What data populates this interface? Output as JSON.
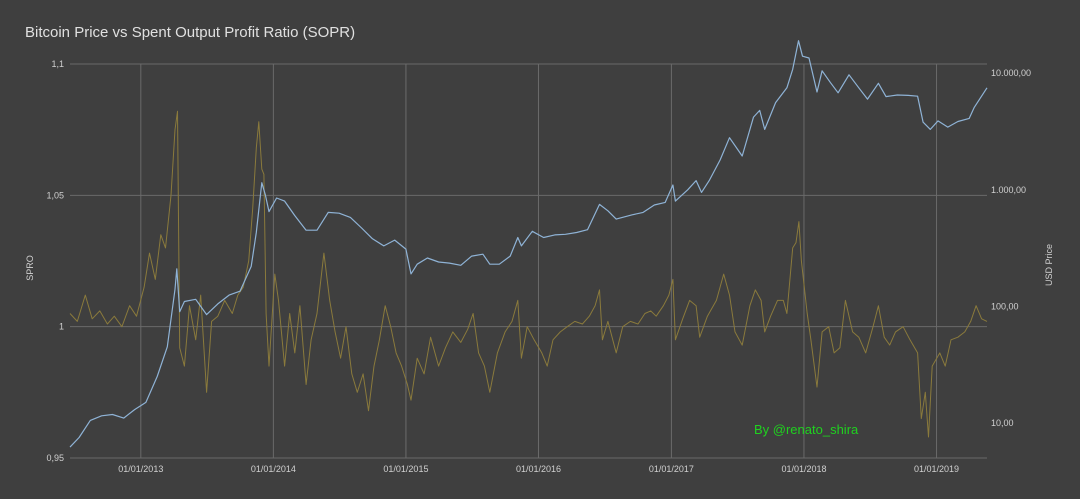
{
  "chart_data": {
    "type": "line",
    "title": "Bitcoin Price vs Spent Output Profit Ratio (SOPR)",
    "ylabel": "SPRO",
    "y2label": "USD Price",
    "ylim": [
      0.95,
      1.1
    ],
    "y_ticks": [
      {
        "value": 0.95,
        "label": "0,95"
      },
      {
        "value": 1.0,
        "label": "1"
      },
      {
        "value": 1.05,
        "label": "1,05"
      },
      {
        "value": 1.1,
        "label": "1,1"
      }
    ],
    "y2_scale": "log",
    "y2lim": [
      5,
      12000
    ],
    "y2_ticks": [
      {
        "value": 10,
        "label": "10,00"
      },
      {
        "value": 100,
        "label": "100,00"
      },
      {
        "value": 1000,
        "label": "1.000,00"
      },
      {
        "value": 10000,
        "label": "10.000,00"
      }
    ],
    "xlim": [
      "2012-06-20",
      "2019-05-20"
    ],
    "x_ticks": [
      {
        "value": "2013-01-01",
        "label": "01/01/2013"
      },
      {
        "value": "2014-01-01",
        "label": "01/01/2014"
      },
      {
        "value": "2015-01-01",
        "label": "01/01/2015"
      },
      {
        "value": "2016-01-01",
        "label": "01/01/2016"
      },
      {
        "value": "2017-01-01",
        "label": "01/01/2017"
      },
      {
        "value": "2018-01-01",
        "label": "01/01/2018"
      },
      {
        "value": "2019-01-01",
        "label": "01/01/2019"
      }
    ],
    "grid": true,
    "annotation": "By @renato_shira",
    "colors": {
      "background": "#3f3f3f",
      "grid": "#6a6a6a",
      "sopr": "#8a7a3c",
      "price": "#8fb3d6",
      "annotation": "#1fd11f",
      "text": "#d0d0d0"
    },
    "series": [
      {
        "name": "SOPR",
        "axis": "left",
        "points": [
          [
            "2012-06-20",
            1.005
          ],
          [
            "2012-07-10",
            1.002
          ],
          [
            "2012-08-01",
            1.012
          ],
          [
            "2012-08-20",
            1.003
          ],
          [
            "2012-09-10",
            1.006
          ],
          [
            "2012-10-01",
            1.001
          ],
          [
            "2012-10-20",
            1.004
          ],
          [
            "2012-11-10",
            1.0
          ],
          [
            "2012-12-01",
            1.008
          ],
          [
            "2012-12-20",
            1.004
          ],
          [
            "2013-01-10",
            1.015
          ],
          [
            "2013-01-25",
            1.028
          ],
          [
            "2013-02-10",
            1.018
          ],
          [
            "2013-02-25",
            1.035
          ],
          [
            "2013-03-10",
            1.03
          ],
          [
            "2013-03-25",
            1.05
          ],
          [
            "2013-04-05",
            1.075
          ],
          [
            "2013-04-12",
            1.082
          ],
          [
            "2013-04-18",
            0.992
          ],
          [
            "2013-05-01",
            0.985
          ],
          [
            "2013-05-15",
            1.008
          ],
          [
            "2013-06-01",
            0.995
          ],
          [
            "2013-06-15",
            1.012
          ],
          [
            "2013-07-01",
            0.975
          ],
          [
            "2013-07-15",
            1.002
          ],
          [
            "2013-08-01",
            1.004
          ],
          [
            "2013-08-20",
            1.01
          ],
          [
            "2013-09-10",
            1.005
          ],
          [
            "2013-09-25",
            1.012
          ],
          [
            "2013-10-10",
            1.015
          ],
          [
            "2013-10-25",
            1.025
          ],
          [
            "2013-11-05",
            1.045
          ],
          [
            "2013-11-15",
            1.068
          ],
          [
            "2013-11-22",
            1.078
          ],
          [
            "2013-11-30",
            1.06
          ],
          [
            "2013-12-06",
            1.058
          ],
          [
            "2013-12-12",
            1.005
          ],
          [
            "2013-12-20",
            0.985
          ],
          [
            "2014-01-05",
            1.02
          ],
          [
            "2014-01-15",
            1.01
          ],
          [
            "2014-02-01",
            0.985
          ],
          [
            "2014-02-15",
            1.005
          ],
          [
            "2014-03-01",
            0.99
          ],
          [
            "2014-03-15",
            1.008
          ],
          [
            "2014-04-01",
            0.978
          ],
          [
            "2014-04-15",
            0.995
          ],
          [
            "2014-05-01",
            1.005
          ],
          [
            "2014-05-20",
            1.028
          ],
          [
            "2014-06-05",
            1.01
          ],
          [
            "2014-06-20",
            0.998
          ],
          [
            "2014-07-05",
            0.988
          ],
          [
            "2014-07-20",
            1.0
          ],
          [
            "2014-08-05",
            0.982
          ],
          [
            "2014-08-20",
            0.975
          ],
          [
            "2014-09-05",
            0.982
          ],
          [
            "2014-09-20",
            0.968
          ],
          [
            "2014-10-05",
            0.985
          ],
          [
            "2014-10-20",
            0.995
          ],
          [
            "2014-11-05",
            1.008
          ],
          [
            "2014-11-20",
            1.0
          ],
          [
            "2014-12-05",
            0.99
          ],
          [
            "2014-12-20",
            0.985
          ],
          [
            "2015-01-05",
            0.978
          ],
          [
            "2015-01-15",
            0.972
          ],
          [
            "2015-02-01",
            0.988
          ],
          [
            "2015-02-20",
            0.982
          ],
          [
            "2015-03-10",
            0.996
          ],
          [
            "2015-04-01",
            0.985
          ],
          [
            "2015-04-20",
            0.992
          ],
          [
            "2015-05-10",
            0.998
          ],
          [
            "2015-06-01",
            0.994
          ],
          [
            "2015-06-20",
            0.999
          ],
          [
            "2015-07-05",
            1.005
          ],
          [
            "2015-07-20",
            0.99
          ],
          [
            "2015-08-05",
            0.985
          ],
          [
            "2015-08-20",
            0.975
          ],
          [
            "2015-09-10",
            0.99
          ],
          [
            "2015-10-01",
            0.998
          ],
          [
            "2015-10-20",
            1.002
          ],
          [
            "2015-11-05",
            1.01
          ],
          [
            "2015-11-15",
            0.988
          ],
          [
            "2015-12-01",
            1.0
          ],
          [
            "2015-12-20",
            0.995
          ],
          [
            "2016-01-10",
            0.99
          ],
          [
            "2016-01-25",
            0.985
          ],
          [
            "2016-02-10",
            0.995
          ],
          [
            "2016-03-01",
            0.998
          ],
          [
            "2016-03-20",
            1.0
          ],
          [
            "2016-04-10",
            1.002
          ],
          [
            "2016-05-01",
            1.001
          ],
          [
            "2016-05-20",
            1.004
          ],
          [
            "2016-06-05",
            1.008
          ],
          [
            "2016-06-17",
            1.014
          ],
          [
            "2016-06-25",
            0.995
          ],
          [
            "2016-07-10",
            1.002
          ],
          [
            "2016-08-02",
            0.99
          ],
          [
            "2016-08-20",
            1.0
          ],
          [
            "2016-09-10",
            1.002
          ],
          [
            "2016-10-01",
            1.001
          ],
          [
            "2016-10-20",
            1.005
          ],
          [
            "2016-11-05",
            1.006
          ],
          [
            "2016-11-20",
            1.004
          ],
          [
            "2016-12-10",
            1.008
          ],
          [
            "2016-12-25",
            1.012
          ],
          [
            "2017-01-05",
            1.018
          ],
          [
            "2017-01-12",
            0.995
          ],
          [
            "2017-02-01",
            1.003
          ],
          [
            "2017-02-20",
            1.01
          ],
          [
            "2017-03-10",
            1.008
          ],
          [
            "2017-03-20",
            0.996
          ],
          [
            "2017-04-10",
            1.004
          ],
          [
            "2017-05-05",
            1.01
          ],
          [
            "2017-05-25",
            1.02
          ],
          [
            "2017-06-10",
            1.012
          ],
          [
            "2017-06-25",
            0.998
          ],
          [
            "2017-07-15",
            0.993
          ],
          [
            "2017-08-05",
            1.008
          ],
          [
            "2017-08-20",
            1.014
          ],
          [
            "2017-09-05",
            1.01
          ],
          [
            "2017-09-15",
            0.998
          ],
          [
            "2017-10-01",
            1.004
          ],
          [
            "2017-10-20",
            1.01
          ],
          [
            "2017-11-05",
            1.01
          ],
          [
            "2017-11-15",
            1.005
          ],
          [
            "2017-12-01",
            1.03
          ],
          [
            "2017-12-10",
            1.032
          ],
          [
            "2017-12-18",
            1.04
          ],
          [
            "2017-12-25",
            1.025
          ],
          [
            "2018-01-10",
            1.005
          ],
          [
            "2018-01-20",
            0.995
          ],
          [
            "2018-02-06",
            0.977
          ],
          [
            "2018-02-20",
            0.998
          ],
          [
            "2018-03-10",
            1.0
          ],
          [
            "2018-03-25",
            0.99
          ],
          [
            "2018-04-10",
            0.992
          ],
          [
            "2018-04-25",
            1.01
          ],
          [
            "2018-05-15",
            0.998
          ],
          [
            "2018-06-01",
            0.996
          ],
          [
            "2018-06-20",
            0.99
          ],
          [
            "2018-07-10",
            1.0
          ],
          [
            "2018-07-25",
            1.008
          ],
          [
            "2018-08-10",
            0.996
          ],
          [
            "2018-08-25",
            0.993
          ],
          [
            "2018-09-10",
            0.998
          ],
          [
            "2018-10-01",
            1.0
          ],
          [
            "2018-10-20",
            0.995
          ],
          [
            "2018-11-10",
            0.99
          ],
          [
            "2018-11-20",
            0.965
          ],
          [
            "2018-12-01",
            0.975
          ],
          [
            "2018-12-10",
            0.958
          ],
          [
            "2018-12-20",
            0.985
          ],
          [
            "2019-01-10",
            0.99
          ],
          [
            "2019-01-25",
            0.985
          ],
          [
            "2019-02-10",
            0.995
          ],
          [
            "2019-03-01",
            0.996
          ],
          [
            "2019-03-20",
            0.998
          ],
          [
            "2019-04-05",
            1.002
          ],
          [
            "2019-04-20",
            1.008
          ],
          [
            "2019-05-05",
            1.003
          ],
          [
            "2019-05-20",
            1.002
          ]
        ]
      },
      {
        "name": "USD Price",
        "axis": "right",
        "points": [
          [
            "2012-06-20",
            6.2
          ],
          [
            "2012-07-15",
            7.5
          ],
          [
            "2012-08-15",
            10.5
          ],
          [
            "2012-09-15",
            11.5
          ],
          [
            "2012-10-15",
            11.8
          ],
          [
            "2012-11-15",
            11.0
          ],
          [
            "2012-12-15",
            13.0
          ],
          [
            "2013-01-15",
            15.0
          ],
          [
            "2013-02-15",
            25.0
          ],
          [
            "2013-03-15",
            45.0
          ],
          [
            "2013-04-05",
            140.0
          ],
          [
            "2013-04-10",
            210.0
          ],
          [
            "2013-04-18",
            90.0
          ],
          [
            "2013-05-01",
            110.0
          ],
          [
            "2013-06-01",
            115.0
          ],
          [
            "2013-07-01",
            85.0
          ],
          [
            "2013-08-01",
            105.0
          ],
          [
            "2013-09-01",
            125.0
          ],
          [
            "2013-10-01",
            135.0
          ],
          [
            "2013-11-01",
            220.0
          ],
          [
            "2013-11-15",
            430.0
          ],
          [
            "2013-11-30",
            1150.0
          ],
          [
            "2013-12-10",
            900.0
          ],
          [
            "2013-12-20",
            650.0
          ],
          [
            "2014-01-10",
            850.0
          ],
          [
            "2014-02-01",
            800.0
          ],
          [
            "2014-03-01",
            600.0
          ],
          [
            "2014-04-01",
            450.0
          ],
          [
            "2014-05-01",
            450.0
          ],
          [
            "2014-06-01",
            640.0
          ],
          [
            "2014-07-01",
            630.0
          ],
          [
            "2014-08-01",
            580.0
          ],
          [
            "2014-09-01",
            470.0
          ],
          [
            "2014-10-01",
            380.0
          ],
          [
            "2014-11-01",
            330.0
          ],
          [
            "2014-12-01",
            370.0
          ],
          [
            "2015-01-01",
            310.0
          ],
          [
            "2015-01-15",
            190.0
          ],
          [
            "2015-02-01",
            230.0
          ],
          [
            "2015-03-01",
            260.0
          ],
          [
            "2015-04-01",
            240.0
          ],
          [
            "2015-05-01",
            235.0
          ],
          [
            "2015-06-01",
            225.0
          ],
          [
            "2015-07-01",
            270.0
          ],
          [
            "2015-08-01",
            280.0
          ],
          [
            "2015-08-20",
            230.0
          ],
          [
            "2015-09-15",
            230.0
          ],
          [
            "2015-10-15",
            270.0
          ],
          [
            "2015-11-05",
            390.0
          ],
          [
            "2015-11-15",
            330.0
          ],
          [
            "2015-12-15",
            440.0
          ],
          [
            "2016-01-15",
            390.0
          ],
          [
            "2016-02-15",
            410.0
          ],
          [
            "2016-03-15",
            415.0
          ],
          [
            "2016-04-15",
            430.0
          ],
          [
            "2016-05-15",
            455.0
          ],
          [
            "2016-06-17",
            750.0
          ],
          [
            "2016-07-10",
            660.0
          ],
          [
            "2016-08-02",
            560.0
          ],
          [
            "2016-09-15",
            610.0
          ],
          [
            "2016-10-15",
            640.0
          ],
          [
            "2016-11-15",
            740.0
          ],
          [
            "2016-12-15",
            780.0
          ],
          [
            "2017-01-05",
            1100.0
          ],
          [
            "2017-01-12",
            800.0
          ],
          [
            "2017-02-15",
            1000.0
          ],
          [
            "2017-03-10",
            1200.0
          ],
          [
            "2017-03-25",
            950.0
          ],
          [
            "2017-04-15",
            1200.0
          ],
          [
            "2017-05-15",
            1800.0
          ],
          [
            "2017-06-10",
            2800.0
          ],
          [
            "2017-07-15",
            1950.0
          ],
          [
            "2017-08-15",
            4200.0
          ],
          [
            "2017-09-01",
            4800.0
          ],
          [
            "2017-09-15",
            3300.0
          ],
          [
            "2017-10-15",
            5600.0
          ],
          [
            "2017-11-15",
            7500.0
          ],
          [
            "2017-12-01",
            10800.0
          ],
          [
            "2017-12-17",
            19000.0
          ],
          [
            "2017-12-28",
            14000.0
          ],
          [
            "2018-01-15",
            13500.0
          ],
          [
            "2018-02-06",
            6900.0
          ],
          [
            "2018-02-20",
            10500.0
          ],
          [
            "2018-03-15",
            8300.0
          ],
          [
            "2018-04-05",
            6800.0
          ],
          [
            "2018-05-05",
            9700.0
          ],
          [
            "2018-06-01",
            7500.0
          ],
          [
            "2018-06-25",
            6000.0
          ],
          [
            "2018-07-25",
            8200.0
          ],
          [
            "2018-08-15",
            6300.0
          ],
          [
            "2018-09-15",
            6500.0
          ],
          [
            "2018-10-15",
            6450.0
          ],
          [
            "2018-11-10",
            6350.0
          ],
          [
            "2018-11-25",
            3800.0
          ],
          [
            "2018-12-15",
            3300.0
          ],
          [
            "2019-01-05",
            3900.0
          ],
          [
            "2019-02-01",
            3450.0
          ],
          [
            "2019-03-01",
            3850.0
          ],
          [
            "2019-04-01",
            4100.0
          ],
          [
            "2019-04-15",
            5100.0
          ],
          [
            "2019-05-20",
            7500.0
          ]
        ]
      }
    ]
  }
}
